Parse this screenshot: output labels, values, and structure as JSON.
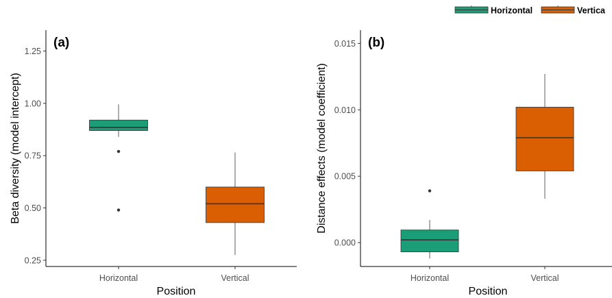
{
  "legend": {
    "items": [
      {
        "label": "Horizontal",
        "color": "#1b9e77"
      },
      {
        "label": "Vertica",
        "color": "#d95f02"
      }
    ]
  },
  "chart_data": [
    {
      "type": "box",
      "panel_label": "(a)",
      "xlabel": "Position",
      "ylabel": "Beta diversity (model intercept)",
      "categories": [
        "Horizontal",
        "Vertical"
      ],
      "ylim": [
        0.22,
        1.35
      ],
      "yticks": [
        0.25,
        0.5,
        0.75,
        1.0,
        1.25
      ],
      "ytick_labels": [
        "0.25",
        "0.50",
        "0.75",
        "1.00",
        "1.25"
      ],
      "boxes": [
        {
          "category": "Horizontal",
          "color": "#1b9e77",
          "whisker_low": 0.84,
          "q1": 0.87,
          "median": 0.885,
          "q3": 0.92,
          "whisker_high": 0.995,
          "outliers": [
            0.77,
            0.49
          ]
        },
        {
          "category": "Vertical",
          "color": "#d95f02",
          "whisker_low": 0.275,
          "q1": 0.43,
          "median": 0.52,
          "q3": 0.6,
          "whisker_high": 0.765,
          "outliers": []
        }
      ],
      "grid": false
    },
    {
      "type": "box",
      "panel_label": "(b)",
      "xlabel": "Position",
      "ylabel": "Distance effects (model coefficient)",
      "categories": [
        "Horizontal",
        "Vertical"
      ],
      "ylim": [
        -0.0018,
        0.016
      ],
      "yticks": [
        0.0,
        0.005,
        0.01,
        0.015
      ],
      "ytick_labels": [
        "0.000",
        "0.005",
        "0.010",
        "0.015"
      ],
      "boxes": [
        {
          "category": "Horizontal",
          "color": "#1b9e77",
          "whisker_low": -0.0012,
          "q1": -0.0007,
          "median": 0.0002,
          "q3": 0.00095,
          "whisker_high": 0.0017,
          "outliers": [
            0.0039
          ]
        },
        {
          "category": "Vertical",
          "color": "#d95f02",
          "whisker_low": 0.0033,
          "q1": 0.0054,
          "median": 0.0079,
          "q3": 0.0102,
          "whisker_high": 0.0127,
          "outliers": []
        }
      ],
      "grid": false
    }
  ]
}
